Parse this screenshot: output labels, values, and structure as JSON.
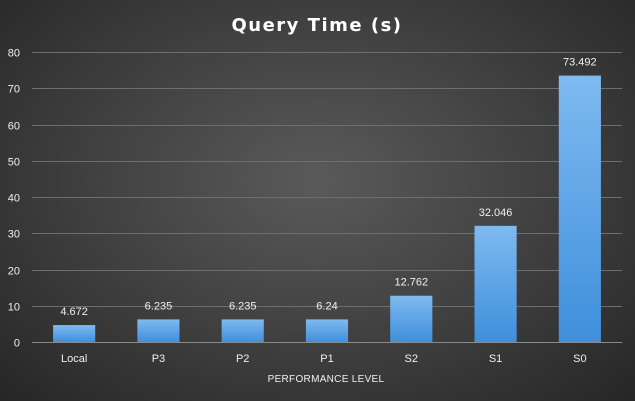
{
  "chart_data": {
    "type": "bar",
    "title": "Query Time (s)",
    "xlabel": "PERFORMANCE LEVEL",
    "ylabel": "",
    "categories": [
      "Local",
      "P3",
      "P2",
      "P1",
      "S2",
      "S1",
      "S0"
    ],
    "values": [
      4.672,
      6.235,
      6.235,
      6.24,
      12.762,
      32.046,
      73.492
    ],
    "value_labels": [
      "4.672",
      "6.235",
      "6.235",
      "6.24",
      "12.762",
      "32.046",
      "73.492"
    ],
    "ylim": [
      0,
      80
    ],
    "yticks": [
      0,
      10,
      20,
      30,
      40,
      50,
      60,
      70,
      80
    ],
    "grid": true,
    "legend": "none",
    "colors": {
      "bar_top": "#7fbaf0",
      "bar_bottom": "#3f8fdc",
      "background": "#3e3e3e",
      "text": "#f0f0f0"
    }
  }
}
